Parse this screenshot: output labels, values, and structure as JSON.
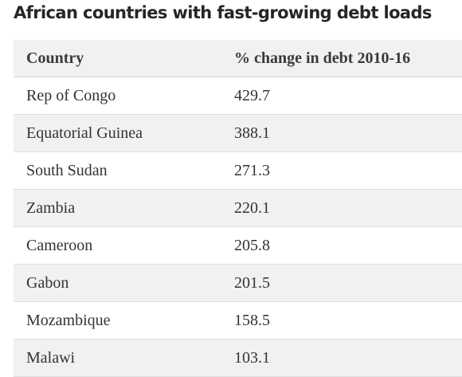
{
  "chart_data": {
    "type": "table",
    "title": "African countries with fast-growing debt loads",
    "columns": [
      "Country",
      "% change in debt 2010-16"
    ],
    "rows": [
      [
        "Rep of Congo",
        "429.7"
      ],
      [
        "Equatorial Guinea",
        "388.1"
      ],
      [
        "South Sudan",
        "271.3"
      ],
      [
        "Zambia",
        "220.1"
      ],
      [
        "Cameroon",
        "205.8"
      ],
      [
        "Gabon",
        "201.5"
      ],
      [
        "Mozambique",
        "158.5"
      ],
      [
        "Malawi",
        "103.1"
      ]
    ]
  }
}
